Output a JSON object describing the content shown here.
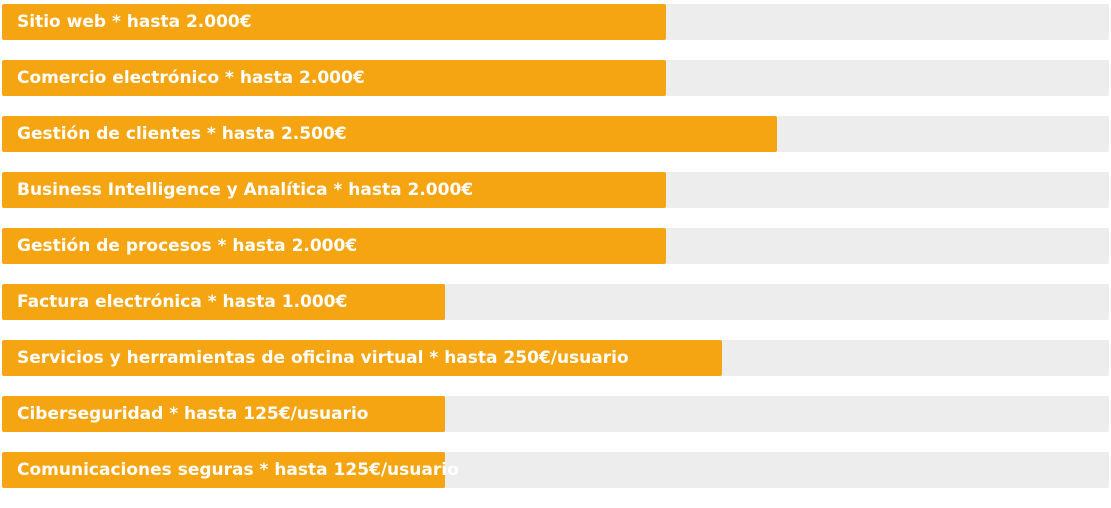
{
  "chart_data": {
    "type": "bar",
    "orientation": "horizontal",
    "categories": [
      "Sitio web * hasta 2.000€",
      "Comercio electrónico * hasta 2.000€",
      "Gestión de clientes * hasta 2.500€",
      "Business Intelligence y Analítica * hasta 2.000€",
      "Gestión de procesos * hasta 2.000€",
      "Factura electrónica * hasta 1.000€",
      "Servicios y herramientas de oficina virtual * hasta 250€/usuario",
      "Ciberseguridad * hasta 125€/usuario",
      "Comunicaciones seguras * hasta 125€/usuario"
    ],
    "values": [
      60,
      60,
      70,
      60,
      60,
      40,
      65,
      40,
      40
    ],
    "xlim": [
      0,
      100
    ],
    "grid": false,
    "colors": {
      "bar": "#f4a511",
      "track": "#ededed",
      "label": "#ffffff"
    }
  }
}
